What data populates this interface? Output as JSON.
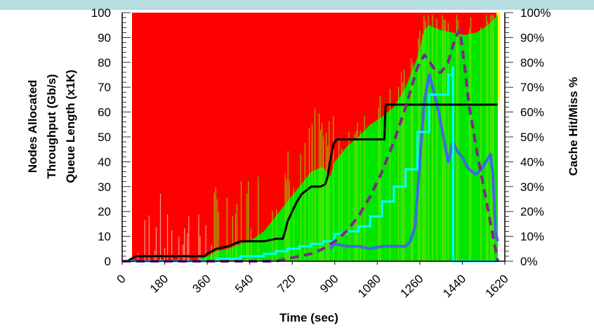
{
  "colors": {
    "top_band": "#b5dde2",
    "cache_miss_fill": "#ff0000",
    "cache_hit_fill": "#00e600",
    "edge_fill": "#ffff00",
    "throughput": "#4169e1",
    "queue_length": "#00ffff",
    "nodes_allocated": "#000000",
    "cache_hit_ratio": "#7b2a8a"
  },
  "chart_data": {
    "type": "area",
    "xlabel": "Time (sec)",
    "ylabel_left": [
      "Nodes Allocated",
      "Throughput (Gb/s)",
      "Queue Length (x1K)"
    ],
    "ylabel_right": "Cache Hit/Miss %",
    "xlim": [
      0,
      1620
    ],
    "ylim_left": [
      0,
      100
    ],
    "ylim_right": [
      0,
      100
    ],
    "x_ticks": [
      "0",
      "180",
      "360",
      "540",
      "720",
      "900",
      "1080",
      "1260",
      "1440",
      "1620"
    ],
    "y_ticks_left": [
      "0",
      "10",
      "20",
      "30",
      "40",
      "50",
      "60",
      "70",
      "80",
      "90",
      "100"
    ],
    "y_ticks_right": [
      "0%",
      "10%",
      "20%",
      "30%",
      "40%",
      "50%",
      "60%",
      "70%",
      "80%",
      "90%",
      "100%"
    ],
    "grid": false,
    "series": [
      {
        "type": "area",
        "x": [
          40,
          300,
          360,
          400,
          450,
          500,
          540,
          600,
          650,
          700,
          750,
          800,
          850,
          880,
          900,
          950,
          1000,
          1050,
          1100,
          1150,
          1200,
          1250,
          1280,
          1300,
          1320,
          1350,
          1400,
          1450,
          1500,
          1550,
          1590
        ],
        "values": [
          0,
          0,
          2,
          4,
          5,
          7,
          8,
          12,
          18,
          24,
          30,
          36,
          38,
          34,
          40,
          46,
          50,
          55,
          58,
          62,
          70,
          82,
          93,
          95,
          94,
          93,
          92,
          91,
          92,
          95,
          99
        ]
      },
      {
        "type": "line",
        "x": [
          0,
          20,
          40,
          60,
          300,
          350,
          360,
          400,
          450,
          500,
          540,
          600,
          650,
          680,
          690,
          700,
          720,
          740,
          760,
          800,
          840,
          860,
          870,
          880,
          890,
          895,
          900,
          910,
          1000,
          1080,
          1110,
          1115,
          1200,
          1300,
          1400,
          1500,
          1590
        ],
        "values": [
          0,
          0,
          1,
          2,
          2,
          2,
          3,
          5,
          6,
          8,
          8,
          8,
          9,
          9,
          12,
          16,
          20,
          24,
          27,
          30,
          30,
          31,
          34,
          40,
          45,
          47,
          48,
          49,
          49,
          49,
          49,
          63,
          63,
          63,
          63,
          63,
          63
        ]
      },
      {
        "type": "line",
        "x": [
          0,
          300,
          400,
          450,
          500,
          550,
          600,
          650,
          700,
          750,
          800,
          850,
          900,
          950,
          1000,
          1050,
          1100,
          1150,
          1200,
          1250,
          1300,
          1350,
          1380,
          1400,
          1401,
          1500,
          1590
        ],
        "values": [
          0,
          0,
          1,
          1,
          2,
          2,
          3,
          4,
          5,
          6,
          7,
          8,
          11,
          12,
          14,
          18,
          24,
          30,
          37,
          52,
          67,
          67,
          75,
          78,
          0,
          0,
          0
        ]
      },
      {
        "type": "line",
        "x": [
          880,
          900,
          950,
          1000,
          1050,
          1100,
          1150,
          1200,
          1220,
          1240,
          1260,
          1280,
          1300,
          1320,
          1340,
          1360,
          1380,
          1400,
          1420,
          1440,
          1460,
          1480,
          1500,
          1520,
          1540,
          1560,
          1570,
          1580,
          1590
        ],
        "values": [
          5,
          7,
          6,
          6,
          5,
          6,
          6,
          6,
          8,
          14,
          40,
          65,
          75,
          68,
          60,
          50,
          40,
          48,
          44,
          42,
          38,
          36,
          35,
          37,
          40,
          43,
          34,
          12,
          8
        ]
      },
      {
        "type": "line",
        "x": [
          0,
          650,
          700,
          750,
          800,
          850,
          900,
          950,
          1000,
          1050,
          1100,
          1150,
          1200,
          1250,
          1280,
          1310,
          1330,
          1350,
          1380,
          1410,
          1430,
          1450,
          1470,
          1500,
          1550,
          1590
        ],
        "values": [
          0,
          0,
          1,
          2,
          3,
          5,
          8,
          12,
          18,
          26,
          36,
          48,
          62,
          78,
          83,
          79,
          76,
          76,
          80,
          90,
          93,
          78,
          62,
          45,
          20,
          0
        ]
      }
    ]
  }
}
